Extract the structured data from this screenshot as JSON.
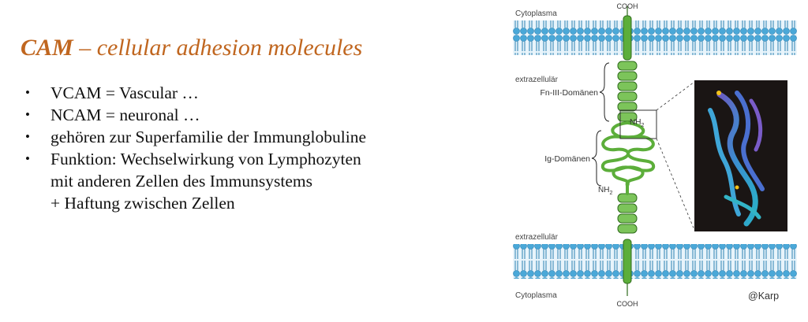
{
  "slide": {
    "title_bold": "CAM",
    "title_rest": " – cellular adhesion molecules",
    "bullets": [
      {
        "lines": [
          "VCAM = Vascular …"
        ]
      },
      {
        "lines": [
          "NCAM = neuronal …"
        ]
      },
      {
        "lines": [
          "gehören zur Superfamilie der Immunglobuline"
        ]
      },
      {
        "lines": [
          "Funktion: Wechselwirkung von Lymphozyten",
          "mit anderen Zellen des Immunsystems",
          "+ Haftung zwischen Zellen"
        ]
      }
    ],
    "bullet_glyph": "•"
  },
  "figure": {
    "top_terminal": "COOH",
    "bottom_terminal": "COOH",
    "top_cytoplasm": "Cytoplasma",
    "bottom_cytoplasm": "Cytoplasma",
    "top_extracellular": "extrazellulär",
    "bottom_extracellular": "extrazellulär",
    "fn_label": "Fn-III-Domänen",
    "ig_label": "Ig-Domänen",
    "nh2_top": "NH",
    "nh2_bottom": "NH",
    "nh2_sub": "2",
    "credit": "@Karp",
    "membrane_color": "#4aa8d8",
    "protein_color": "#5cae3a"
  }
}
